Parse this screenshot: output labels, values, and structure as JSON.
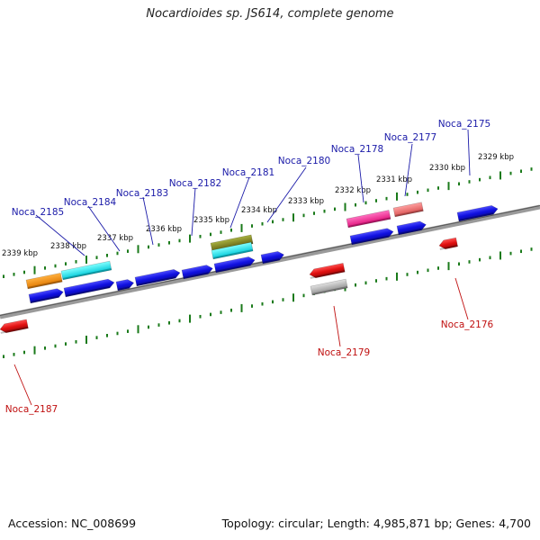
{
  "title": "Nocardioides sp. JS614, complete genome",
  "footer": {
    "accession": "Accession: NC_008699",
    "topology": "Topology: circular; Length: 4,985,871 bp; Genes: 4,700"
  },
  "ticks": [
    {
      "label": "2329 kbp"
    },
    {
      "label": "2330 kbp"
    },
    {
      "label": "2331 kbp"
    },
    {
      "label": "2332 kbp"
    },
    {
      "label": "2333 kbp"
    },
    {
      "label": "2334 kbp"
    },
    {
      "label": "2335 kbp"
    },
    {
      "label": "2336 kbp"
    },
    {
      "label": "2337 kbp"
    },
    {
      "label": "2338 kbp"
    },
    {
      "label": "2339 kbp"
    }
  ],
  "genes": [
    {
      "label": "Noca_2175",
      "strand": "top"
    },
    {
      "label": "Noca_2177",
      "strand": "top"
    },
    {
      "label": "Noca_2178",
      "strand": "top"
    },
    {
      "label": "Noca_2180",
      "strand": "top"
    },
    {
      "label": "Noca_2181",
      "strand": "top"
    },
    {
      "label": "Noca_2182",
      "strand": "top"
    },
    {
      "label": "Noca_2183",
      "strand": "top"
    },
    {
      "label": "Noca_2184",
      "strand": "top"
    },
    {
      "label": "Noca_2185",
      "strand": "top"
    },
    {
      "label": "Noca_2176",
      "strand": "bottom"
    },
    {
      "label": "Noca_2179",
      "strand": "bottom"
    },
    {
      "label": "Noca_2187",
      "strand": "bottom"
    }
  ],
  "colors": {
    "backbone": "#888888",
    "tick": "#1a7a1a",
    "forward_gene": "#1010e0",
    "reverse_gene": "#e01010",
    "label_top": "#1a1aa8",
    "label_bottom": "#c01010"
  }
}
